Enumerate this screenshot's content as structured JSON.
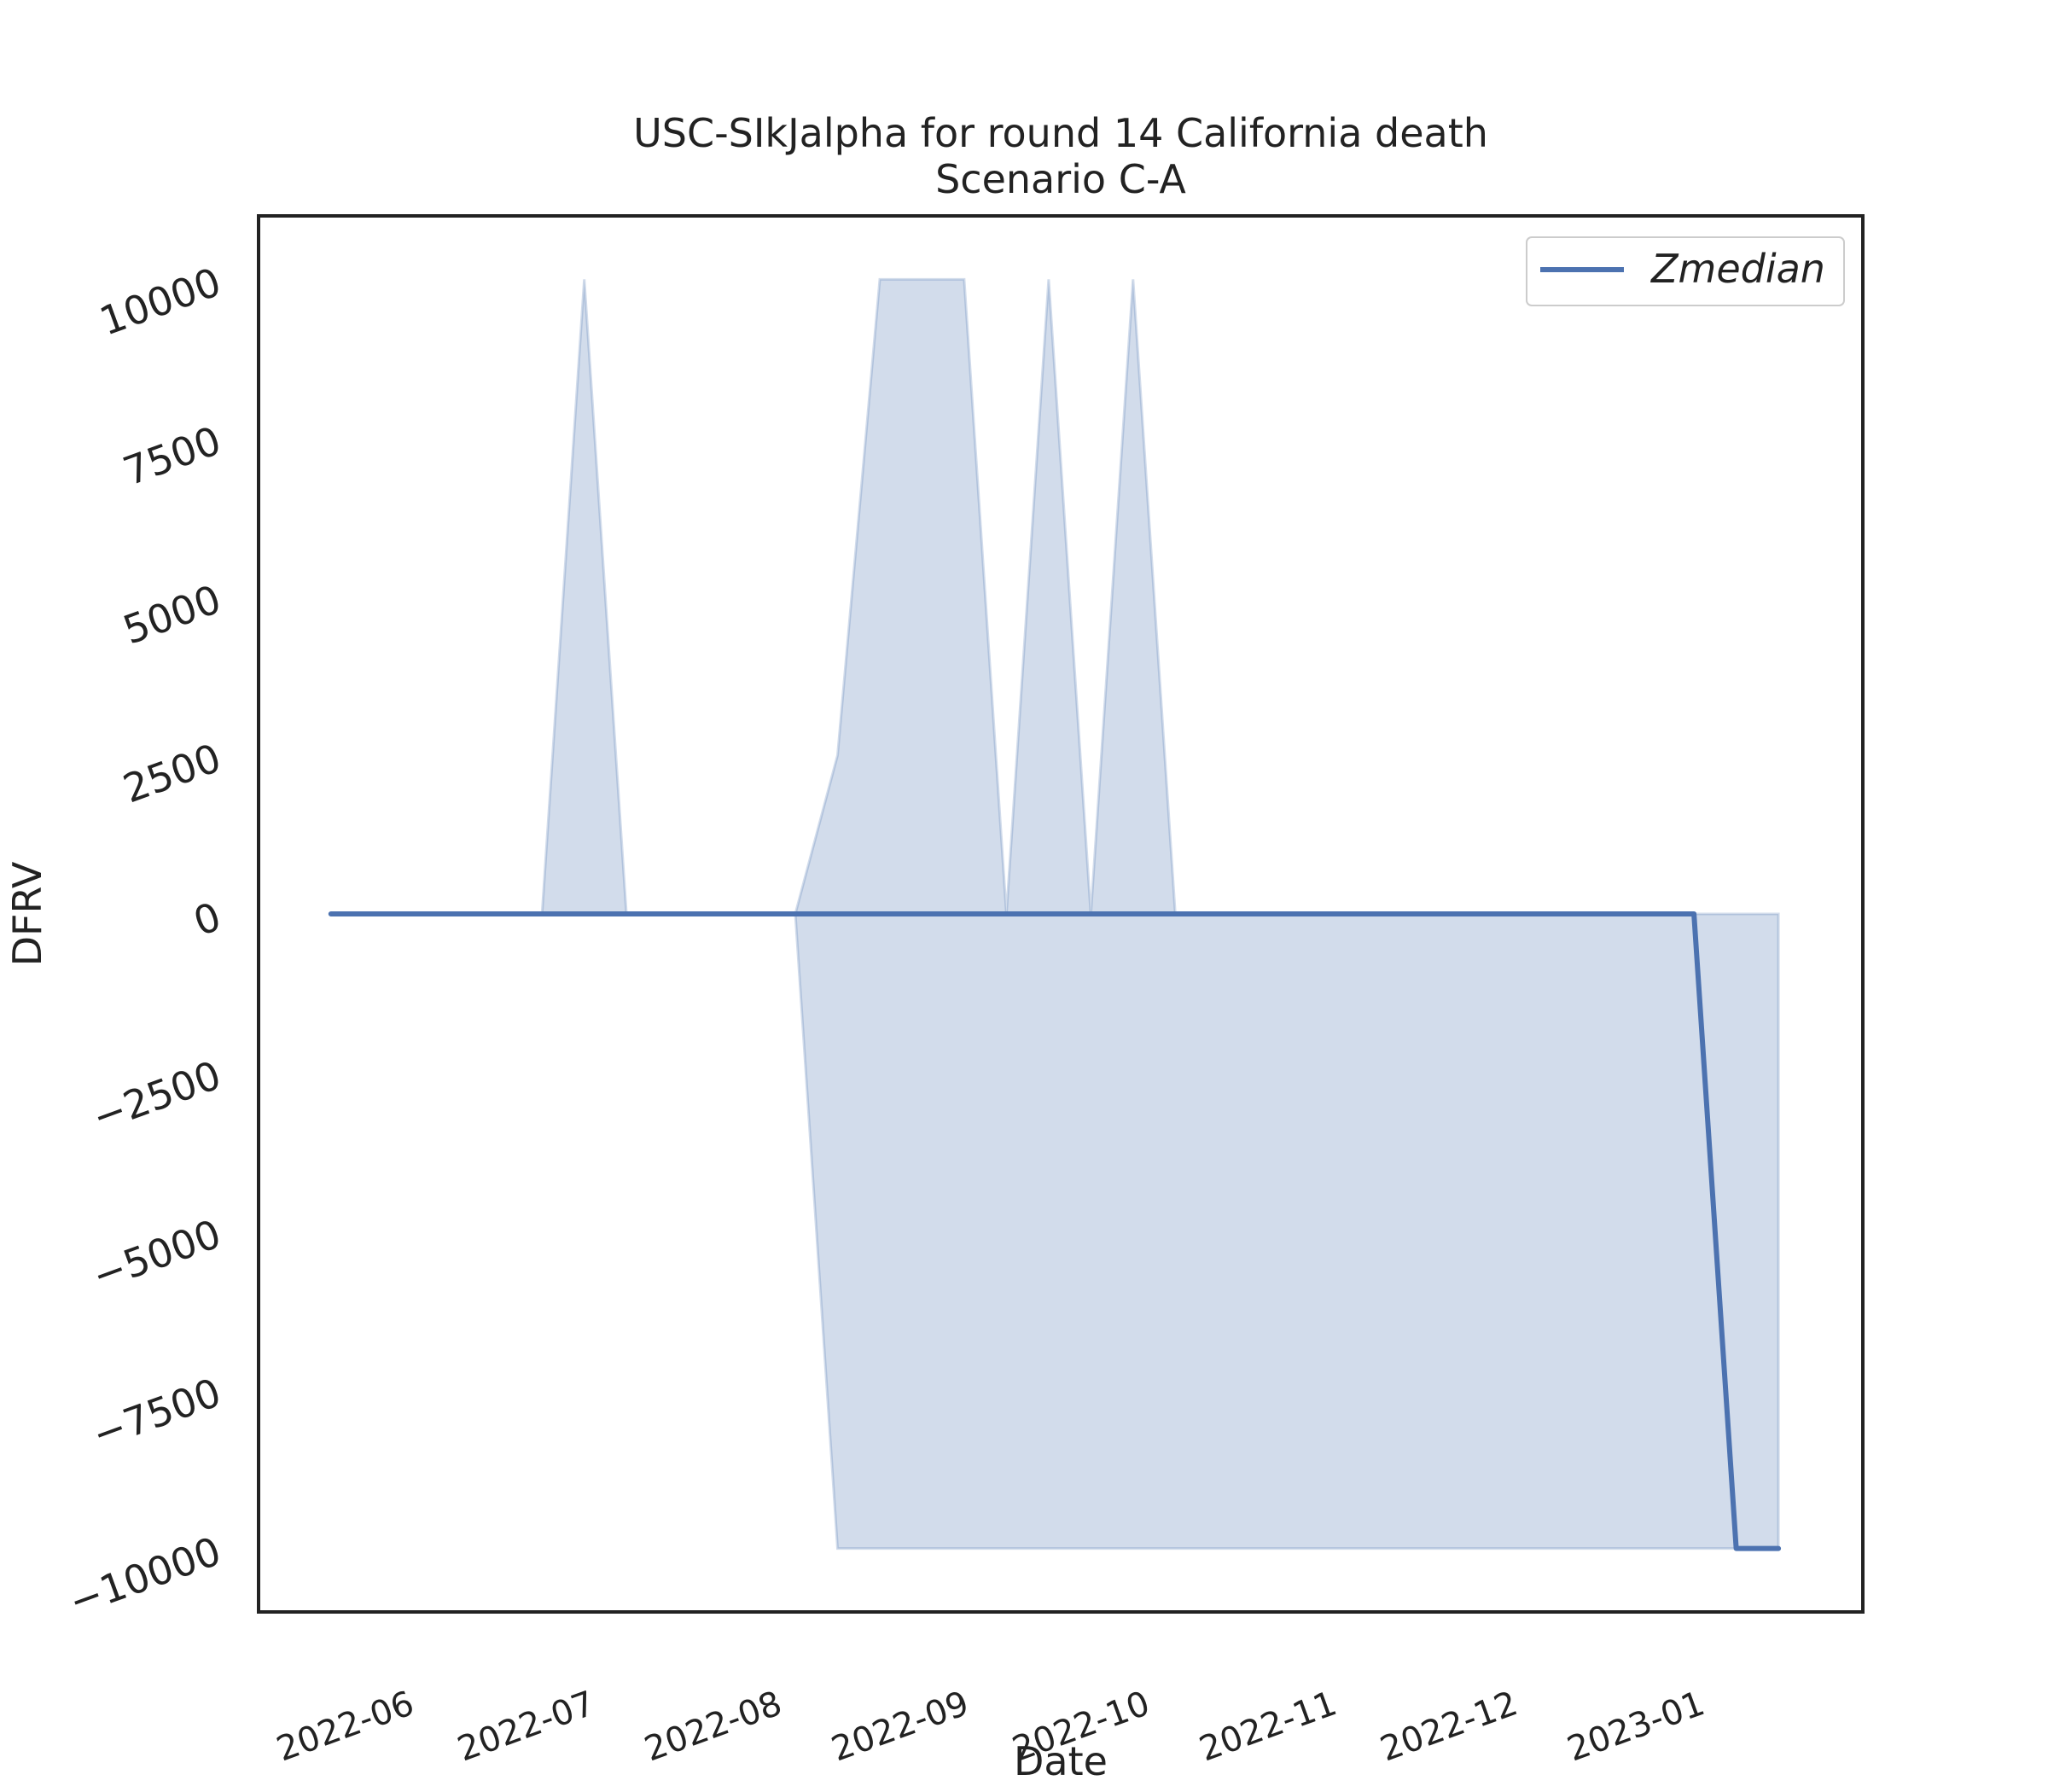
{
  "chart_data": {
    "type": "line",
    "title": "USC-SIkJalpha for round 14 California death",
    "subtitle": "Scenario C-A",
    "xlabel": "Date",
    "ylabel": "DFRV",
    "xlim": [
      "2022-05-07",
      "2023-01-28"
    ],
    "ylim": [
      -11000,
      11000
    ],
    "yticks": [
      -10000,
      -7500,
      -5000,
      -2500,
      0,
      2500,
      5000,
      7500,
      10000
    ],
    "xticks": [
      "2022-06",
      "2022-07",
      "2022-08",
      "2022-09",
      "2022-10",
      "2022-11",
      "2022-12",
      "2023-01"
    ],
    "xtick_dates": [
      "2022-06-01",
      "2022-07-01",
      "2022-08-01",
      "2022-09-01",
      "2022-10-01",
      "2022-11-01",
      "2022-12-01",
      "2023-01-01"
    ],
    "grid": false,
    "legend_position": "top-right",
    "colors": {
      "line": "#4c72b0",
      "band_fill": "#4c72b0",
      "frame": "#222222"
    },
    "series": [
      {
        "name": "Zmedian",
        "x": [
          "2022-05-19",
          "2022-12-31",
          "2023-01-07",
          "2023-01-14"
        ],
        "values": [
          0,
          0,
          -10000,
          -10000
        ]
      }
    ],
    "band": {
      "x": [
        "2022-05-19",
        "2022-06-23",
        "2022-06-30",
        "2022-07-07",
        "2022-08-04",
        "2022-08-11",
        "2022-08-18",
        "2022-09-01",
        "2022-09-08",
        "2022-09-15",
        "2022-09-22",
        "2022-09-29",
        "2022-10-06",
        "2022-12-31",
        "2023-01-07",
        "2023-01-14"
      ],
      "upper": [
        0,
        0,
        10000,
        0,
        0,
        2500,
        10000,
        10000,
        0,
        10000,
        0,
        10000,
        0,
        0,
        0,
        0
      ],
      "lower": [
        0,
        0,
        0,
        0,
        0,
        -10000,
        -10000,
        -10000,
        -10000,
        -10000,
        -10000,
        -10000,
        -10000,
        -10000,
        -10000,
        -10000
      ]
    }
  }
}
